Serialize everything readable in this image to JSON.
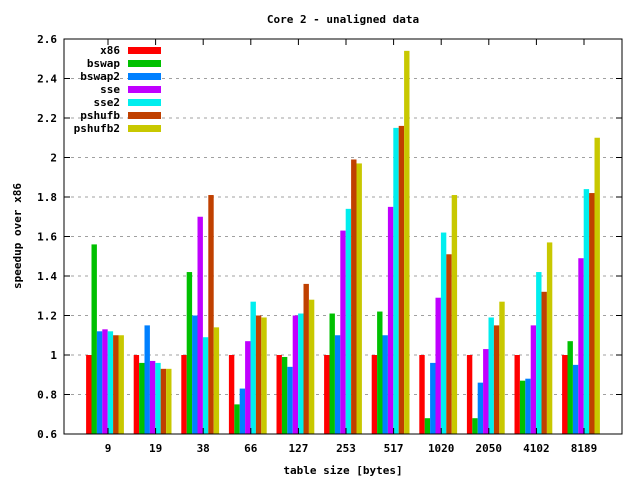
{
  "chart_data": {
    "type": "bar",
    "title": "Core 2 - unaligned data",
    "xlabel": "table size [bytes]",
    "ylabel": "speedup over x86",
    "ylim": [
      0.6,
      2.6
    ],
    "yticks": [
      "0.6",
      "0.8",
      "1",
      "1.2",
      "1.4",
      "1.6",
      "1.8",
      "2",
      "2.2",
      "2.4",
      "2.6"
    ],
    "grid": "horizontal dashed",
    "legend_position": "top-left",
    "categories": [
      "9",
      "19",
      "38",
      "66",
      "127",
      "253",
      "517",
      "1020",
      "2050",
      "4102",
      "8189"
    ],
    "series": [
      {
        "name": "x86",
        "color": "#ff0000",
        "values": [
          1,
          1,
          1,
          1,
          1,
          1,
          1,
          1,
          1,
          1,
          1
        ]
      },
      {
        "name": "bswap",
        "color": "#00c000",
        "values": [
          1.56,
          0.96,
          1.42,
          0.75,
          0.99,
          1.21,
          1.22,
          0.68,
          0.68,
          0.87,
          1.07
        ]
      },
      {
        "name": "bswap2",
        "color": "#0080ff",
        "values": [
          1.12,
          1.15,
          1.2,
          0.83,
          0.94,
          1.1,
          1.1,
          0.96,
          0.86,
          0.88,
          0.95
        ]
      },
      {
        "name": "sse",
        "color": "#c000ff",
        "values": [
          1.13,
          0.97,
          1.7,
          1.07,
          1.2,
          1.63,
          1.75,
          1.29,
          1.03,
          1.15,
          1.49
        ]
      },
      {
        "name": "sse2",
        "color": "#00eeee",
        "values": [
          1.12,
          0.96,
          1.09,
          1.27,
          1.21,
          1.74,
          2.15,
          1.62,
          1.19,
          1.42,
          1.84
        ]
      },
      {
        "name": "pshufb",
        "color": "#c04000",
        "values": [
          1.1,
          0.93,
          1.81,
          1.2,
          1.36,
          1.99,
          2.16,
          1.51,
          1.15,
          1.32,
          1.82
        ]
      },
      {
        "name": "pshufb2",
        "color": "#c8c800",
        "values": [
          1.1,
          0.93,
          1.14,
          1.19,
          1.28,
          1.97,
          2.54,
          1.81,
          1.27,
          1.57,
          2.1
        ]
      }
    ]
  }
}
